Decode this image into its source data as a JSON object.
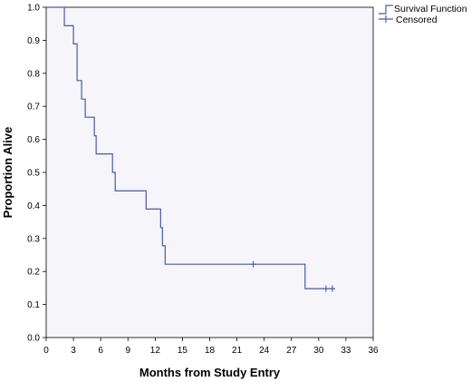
{
  "chart_data": {
    "type": "line",
    "subtype": "kaplan-meier",
    "xlabel": "Months from Study Entry",
    "ylabel": "Proportion Alive",
    "xlim": [
      0,
      36
    ],
    "ylim": [
      0,
      1.0
    ],
    "xticks": [
      "0",
      "3",
      "6",
      "9",
      "12",
      "15",
      "18",
      "21",
      "24",
      "27",
      "30",
      "33",
      "36"
    ],
    "yticks": [
      "0.0",
      "0.1",
      "0.2",
      "0.3",
      "0.4",
      "0.5",
      "0.6",
      "0.7",
      "0.8",
      "0.9",
      "1.0"
    ],
    "grid": false,
    "legend_position": "top-right",
    "legend": [
      "Survival Function",
      "Censored"
    ],
    "series": [
      {
        "name": "Survival Function",
        "color": "#4a5ba8",
        "step_x": [
          0,
          2,
          3,
          3.4,
          3.9,
          4.3,
          5.3,
          5.5,
          7.3,
          7.6,
          11,
          12.6,
          12.8,
          13.1,
          28.5,
          31.8
        ],
        "step_y": [
          1.0,
          0.944,
          0.889,
          0.778,
          0.722,
          0.667,
          0.611,
          0.556,
          0.5,
          0.444,
          0.389,
          0.333,
          0.278,
          0.222,
          0.148,
          0.148
        ]
      },
      {
        "name": "Censored",
        "color": "#4a5ba8",
        "x": [
          22.8,
          30.8,
          31.5
        ],
        "y": [
          0.222,
          0.148,
          0.148
        ]
      }
    ],
    "plot_background": "#f5f5fa"
  }
}
